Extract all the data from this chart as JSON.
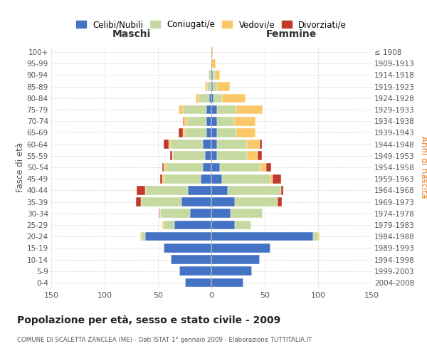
{
  "age_groups": [
    "0-4",
    "5-9",
    "10-14",
    "15-19",
    "20-24",
    "25-29",
    "30-34",
    "35-39",
    "40-44",
    "45-49",
    "50-54",
    "55-59",
    "60-64",
    "65-69",
    "70-74",
    "75-79",
    "80-84",
    "85-89",
    "90-94",
    "95-99",
    "100+"
  ],
  "birth_years": [
    "2004-2008",
    "1999-2003",
    "1994-1998",
    "1989-1993",
    "1984-1988",
    "1979-1983",
    "1974-1978",
    "1969-1973",
    "1964-1968",
    "1959-1963",
    "1954-1958",
    "1949-1953",
    "1944-1948",
    "1939-1943",
    "1934-1938",
    "1929-1933",
    "1924-1928",
    "1919-1923",
    "1914-1918",
    "1909-1913",
    "≤ 1908"
  ],
  "maschi_celibi": [
    25,
    30,
    38,
    45,
    62,
    35,
    20,
    28,
    22,
    10,
    8,
    6,
    8,
    5,
    5,
    5,
    2,
    1,
    1,
    0,
    0
  ],
  "maschi_coniugati": [
    0,
    0,
    0,
    0,
    4,
    10,
    28,
    38,
    40,
    35,
    35,
    30,
    30,
    20,
    18,
    22,
    10,
    3,
    2,
    0,
    0
  ],
  "maschi_vedovi": [
    0,
    0,
    0,
    0,
    1,
    1,
    0,
    0,
    0,
    1,
    2,
    1,
    2,
    2,
    3,
    4,
    3,
    2,
    0,
    0,
    0
  ],
  "maschi_divorziati": [
    0,
    0,
    0,
    0,
    0,
    0,
    1,
    5,
    8,
    2,
    1,
    2,
    5,
    4,
    1,
    0,
    0,
    0,
    0,
    0,
    0
  ],
  "femmine_nubili": [
    30,
    38,
    45,
    55,
    95,
    22,
    18,
    22,
    15,
    10,
    8,
    5,
    5,
    5,
    5,
    5,
    2,
    1,
    1,
    0,
    0
  ],
  "femmine_coniugate": [
    0,
    0,
    0,
    0,
    5,
    15,
    30,
    40,
    50,
    45,
    38,
    28,
    28,
    18,
    16,
    18,
    8,
    4,
    2,
    0,
    0
  ],
  "femmine_vedove": [
    0,
    0,
    0,
    0,
    1,
    0,
    0,
    0,
    0,
    2,
    5,
    10,
    12,
    18,
    20,
    25,
    22,
    12,
    5,
    4,
    1
  ],
  "femmine_divorziate": [
    0,
    0,
    0,
    0,
    0,
    0,
    0,
    4,
    2,
    8,
    5,
    4,
    2,
    0,
    0,
    0,
    0,
    0,
    0,
    0,
    0
  ],
  "colors": {
    "celibi": "#4472c4",
    "coniugati": "#c6d9a0",
    "vedovi": "#fac869",
    "divorziati": "#c0392b"
  },
  "xlim": 150,
  "title": "Popolazione per età, sesso e stato civile - 2009",
  "subtitle": "COMUNE DI SCALETTA ZANCLEA (ME) - Dati ISTAT 1° gennaio 2009 - Elaborazione TUTTITALIA.IT",
  "ylabel_left": "Fasce di età",
  "ylabel_right": "Anni di nascita",
  "label_maschi": "Maschi",
  "label_femmine": "Femmine",
  "legend_labels": [
    "Celibi/Nubili",
    "Coniugati/e",
    "Vedovi/e",
    "Divorziati/e"
  ],
  "bg_color": "#ffffff",
  "grid_color": "#cccccc"
}
